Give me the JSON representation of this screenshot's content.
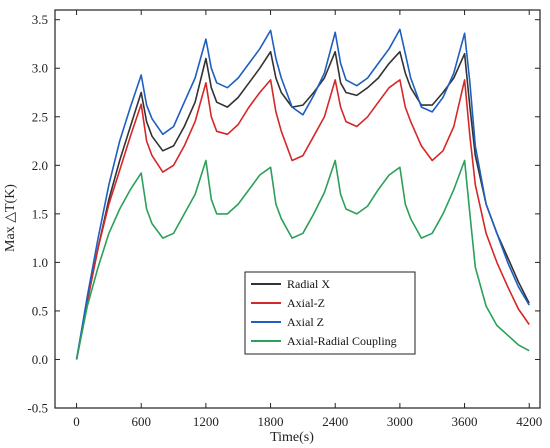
{
  "chart_data": {
    "type": "line",
    "xlabel": "Time(s)",
    "ylabel": "Max △T(K)",
    "xlim": [
      -200,
      4300
    ],
    "ylim": [
      -0.5,
      3.6
    ],
    "xticks": [
      0,
      600,
      1200,
      1800,
      2400,
      3000,
      3600,
      4200
    ],
    "yticks": [
      -0.5,
      0.0,
      0.5,
      1.0,
      1.5,
      2.0,
      2.5,
      3.0,
      3.5
    ],
    "grid": false,
    "legend_position": "bottom-right",
    "series": [
      {
        "name": "Radial X",
        "color": "#333333",
        "x": [
          0,
          100,
          200,
          300,
          400,
          500,
          600,
          650,
          700,
          800,
          900,
          1000,
          1100,
          1200,
          1250,
          1300,
          1400,
          1500,
          1600,
          1700,
          1800,
          1850,
          1900,
          2000,
          2100,
          2200,
          2300,
          2400,
          2450,
          2500,
          2600,
          2700,
          2800,
          2900,
          3000,
          3050,
          3100,
          3200,
          3300,
          3400,
          3500,
          3600,
          3650,
          3700,
          3800,
          3900,
          4000,
          4100,
          4200
        ],
        "y": [
          0.0,
          0.6,
          1.15,
          1.65,
          2.05,
          2.4,
          2.75,
          2.45,
          2.3,
          2.15,
          2.2,
          2.4,
          2.65,
          3.1,
          2.8,
          2.65,
          2.6,
          2.7,
          2.85,
          3.0,
          3.17,
          2.9,
          2.75,
          2.6,
          2.62,
          2.75,
          2.9,
          3.17,
          2.85,
          2.75,
          2.72,
          2.8,
          2.9,
          3.05,
          3.17,
          2.95,
          2.8,
          2.62,
          2.62,
          2.75,
          2.9,
          3.15,
          2.6,
          2.1,
          1.6,
          1.3,
          1.05,
          0.8,
          0.58
        ]
      },
      {
        "name": "Axial-Z",
        "color": "#d62728",
        "x": [
          0,
          100,
          200,
          300,
          400,
          500,
          600,
          650,
          700,
          800,
          900,
          1000,
          1100,
          1200,
          1250,
          1300,
          1400,
          1500,
          1600,
          1700,
          1800,
          1850,
          1900,
          2000,
          2100,
          2200,
          2300,
          2400,
          2450,
          2500,
          2600,
          2700,
          2800,
          2900,
          3000,
          3050,
          3100,
          3200,
          3300,
          3400,
          3500,
          3600,
          3650,
          3700,
          3800,
          3900,
          4000,
          4100,
          4200
        ],
        "y": [
          0.0,
          0.6,
          1.15,
          1.6,
          1.95,
          2.3,
          2.63,
          2.25,
          2.1,
          1.93,
          2.0,
          2.2,
          2.45,
          2.85,
          2.5,
          2.35,
          2.32,
          2.42,
          2.6,
          2.75,
          2.88,
          2.55,
          2.35,
          2.05,
          2.1,
          2.3,
          2.5,
          2.88,
          2.6,
          2.45,
          2.4,
          2.5,
          2.65,
          2.8,
          2.88,
          2.6,
          2.45,
          2.2,
          2.05,
          2.15,
          2.4,
          2.88,
          2.3,
          1.8,
          1.3,
          1.0,
          0.75,
          0.52,
          0.36
        ]
      },
      {
        "name": "Axial Z",
        "color": "#1f5fbf",
        "x": [
          0,
          100,
          200,
          300,
          400,
          500,
          600,
          650,
          700,
          800,
          900,
          1000,
          1100,
          1200,
          1250,
          1300,
          1400,
          1500,
          1600,
          1700,
          1800,
          1850,
          1900,
          2000,
          2100,
          2200,
          2300,
          2400,
          2450,
          2500,
          2600,
          2700,
          2800,
          2900,
          3000,
          3050,
          3100,
          3200,
          3300,
          3400,
          3500,
          3600,
          3650,
          3700,
          3800,
          3900,
          4000,
          4100,
          4200
        ],
        "y": [
          0.0,
          0.65,
          1.25,
          1.8,
          2.25,
          2.6,
          2.93,
          2.62,
          2.48,
          2.32,
          2.4,
          2.65,
          2.9,
          3.3,
          3.0,
          2.85,
          2.8,
          2.9,
          3.05,
          3.2,
          3.39,
          3.1,
          2.9,
          2.6,
          2.52,
          2.72,
          2.95,
          3.37,
          3.05,
          2.88,
          2.82,
          2.9,
          3.05,
          3.2,
          3.4,
          3.15,
          2.9,
          2.6,
          2.55,
          2.7,
          2.95,
          3.36,
          2.85,
          2.2,
          1.6,
          1.3,
          1.0,
          0.75,
          0.56
        ]
      },
      {
        "name": "Axial-Radial Coupling",
        "color": "#2ca05a",
        "x": [
          0,
          100,
          200,
          300,
          400,
          500,
          600,
          650,
          700,
          800,
          900,
          1000,
          1100,
          1200,
          1250,
          1300,
          1400,
          1500,
          1600,
          1700,
          1800,
          1850,
          1900,
          2000,
          2100,
          2200,
          2300,
          2400,
          2450,
          2500,
          2600,
          2700,
          2800,
          2900,
          3000,
          3050,
          3100,
          3200,
          3300,
          3400,
          3500,
          3600,
          3650,
          3700,
          3800,
          3900,
          4000,
          4100,
          4200
        ],
        "y": [
          0.0,
          0.55,
          0.95,
          1.3,
          1.55,
          1.75,
          1.92,
          1.55,
          1.4,
          1.25,
          1.3,
          1.5,
          1.7,
          2.05,
          1.65,
          1.5,
          1.5,
          1.6,
          1.75,
          1.9,
          1.98,
          1.6,
          1.45,
          1.25,
          1.3,
          1.5,
          1.72,
          2.05,
          1.7,
          1.55,
          1.5,
          1.58,
          1.75,
          1.9,
          1.98,
          1.6,
          1.45,
          1.25,
          1.3,
          1.5,
          1.75,
          2.05,
          1.5,
          0.95,
          0.55,
          0.35,
          0.25,
          0.15,
          0.09
        ]
      }
    ]
  }
}
